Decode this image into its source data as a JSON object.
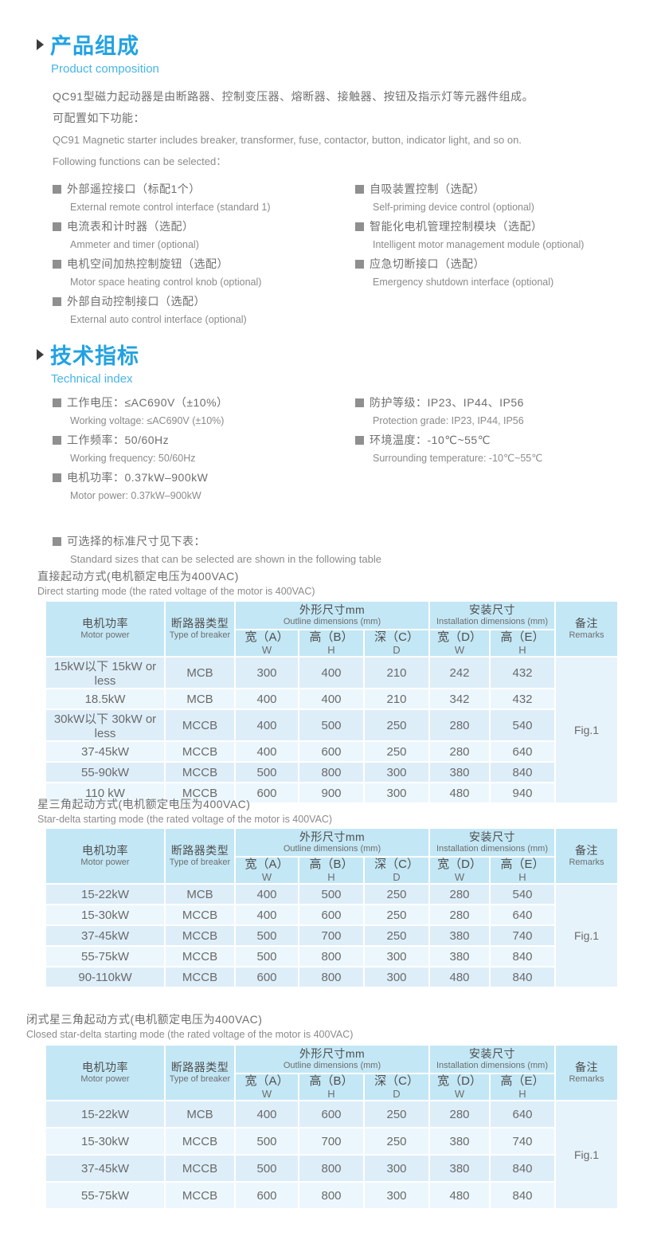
{
  "colors": {
    "accent_blue": "#22a2e2",
    "subtitle_blue": "#47b4e9",
    "table_header_bg": "#c3e7f5",
    "row_dark_bg": "#ddeef9",
    "row_light_bg": "#ecf7fd",
    "remark_bg": "#e7f3fb"
  },
  "product": {
    "title_cn": "产品组成",
    "title_en": "Product composition",
    "intro": [
      {
        "lang": "cn",
        "text": "QC91型磁力起动器是由断路器、控制变压器、熔断器、接触器、按钮及指示灯等元器件组成。"
      },
      {
        "lang": "cn",
        "text": "可配置如下功能："
      },
      {
        "lang": "en",
        "text": "QC91 Magnetic starter includes breaker, transformer, fuse, contactor, button, indicator light, and so on."
      },
      {
        "lang": "en",
        "text": "Following functions can be selected："
      }
    ],
    "features_left": [
      {
        "cn": "外部遥控接口（标配1个）",
        "en": "External remote control interface (standard 1)"
      },
      {
        "cn": "电流表和计时器（选配）",
        "en": "Ammeter and timer (optional)"
      },
      {
        "cn": "电机空间加热控制旋钮（选配）",
        "en": "Motor space heating control knob (optional)"
      },
      {
        "cn": "外部自动控制接口（选配）",
        "en": "External auto control interface (optional)"
      }
    ],
    "features_right": [
      {
        "cn": "自吸装置控制（选配）",
        "en": "Self-priming device control (optional)"
      },
      {
        "cn": "智能化电机管理控制模块（选配）",
        "en": "Intelligent motor management module (optional)"
      },
      {
        "cn": "应急切断接口（选配）",
        "en": "Emergency shutdown interface (optional)"
      }
    ]
  },
  "technical": {
    "title_cn": "技术指标",
    "title_en": "Technical index",
    "specs_left": [
      {
        "cn": "工作电压：≤AC690V（±10%）",
        "en": "Working voltage: ≤AC690V (±10%)"
      },
      {
        "cn": "工作频率：50/60Hz",
        "en": "Working frequency: 50/60Hz"
      },
      {
        "cn": "电机功率：0.37kW–900kW",
        "en": "Motor power: 0.37kW–900kW"
      }
    ],
    "specs_right": [
      {
        "cn": "防护等级：IP23、IP44、IP56",
        "en": "Protection grade: IP23, IP44, IP56"
      },
      {
        "cn": "环境温度：-10℃~55℃",
        "en": "Surrounding temperature: -10℃~55℃"
      }
    ]
  },
  "size_note": {
    "cn": "可选择的标准尺寸见下表：",
    "en": "Standard sizes that can be selected are shown in the following table"
  },
  "table_header": {
    "motor_cn": "电机功率",
    "motor_en": "Motor power",
    "breaker_cn": "断路器类型",
    "breaker_en": "Type of breaker",
    "outline_cn": "外形尺寸mm",
    "outline_en": "Outline dimensions (mm)",
    "install_cn": "安装尺寸",
    "install_en": "Installation dimensions (mm)",
    "remarks_cn": "备注",
    "remarks_en": "Remarks",
    "subcols": [
      {
        "cn": "宽（A）",
        "letter": "W"
      },
      {
        "cn": "高（B）",
        "letter": "H"
      },
      {
        "cn": "深（C）",
        "letter": "D"
      },
      {
        "cn": "宽（D）",
        "letter": "W"
      },
      {
        "cn": "高（E）",
        "letter": "H"
      }
    ]
  },
  "chart_data": [
    {
      "type": "table",
      "title": "直接起动方式(电机额定电压为400VAC)",
      "title_en": "Direct starting mode (the rated voltage of the motor is 400VAC)",
      "rows": [
        [
          "15kW以下 15kW or less",
          "MCB",
          "300",
          "400",
          "210",
          "242",
          "432"
        ],
        [
          "18.5kW",
          "MCB",
          "400",
          "400",
          "210",
          "342",
          "432"
        ],
        [
          "30kW以下 30kW or less",
          "MCCB",
          "400",
          "500",
          "250",
          "280",
          "540"
        ],
        [
          "37-45kW",
          "MCCB",
          "400",
          "600",
          "250",
          "280",
          "640"
        ],
        [
          "55-90kW",
          "MCCB",
          "500",
          "800",
          "300",
          "380",
          "840"
        ],
        [
          "110 kW",
          "MCCB",
          "600",
          "900",
          "300",
          "480",
          "940"
        ]
      ],
      "remark": "Fig.1",
      "tall": false
    },
    {
      "type": "table",
      "title": "星三角起动方式(电机额定电压为400VAC)",
      "title_en": "Star-delta starting mode (the rated voltage of the motor is 400VAC)",
      "rows": [
        [
          "15-22kW",
          "MCB",
          "400",
          "500",
          "250",
          "280",
          "540"
        ],
        [
          "15-30kW",
          "MCCB",
          "400",
          "600",
          "250",
          "280",
          "640"
        ],
        [
          "37-45kW",
          "MCCB",
          "500",
          "700",
          "250",
          "380",
          "740"
        ],
        [
          "55-75kW",
          "MCCB",
          "500",
          "800",
          "300",
          "380",
          "840"
        ],
        [
          "90-110kW",
          "MCCB",
          "600",
          "800",
          "300",
          "480",
          "840"
        ]
      ],
      "remark": "Fig.1",
      "tall": false
    },
    {
      "type": "table",
      "title": "闭式星三角起动方式(电机额定电压为400VAC)",
      "title_en": "Closed star-delta starting mode (the rated voltage of the motor is 400VAC)",
      "rows": [
        [
          "15-22kW",
          "MCB",
          "400",
          "600",
          "250",
          "280",
          "640"
        ],
        [
          "15-30kW",
          "MCCB",
          "500",
          "700",
          "250",
          "380",
          "740"
        ],
        [
          "37-45kW",
          "MCCB",
          "500",
          "800",
          "300",
          "380",
          "840"
        ],
        [
          "55-75kW",
          "MCCB",
          "600",
          "800",
          "300",
          "480",
          "840"
        ]
      ],
      "remark": "Fig.1",
      "tall": true
    }
  ]
}
